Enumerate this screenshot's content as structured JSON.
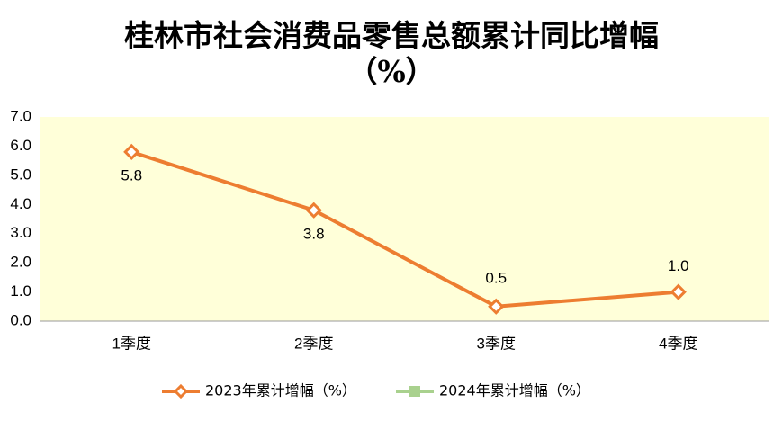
{
  "chart_data": {
    "type": "line",
    "title": "桂林市社会消费品零售总额累计同比增幅",
    "subtitle": "（%）",
    "categories": [
      "1季度",
      "2季度",
      "3季度",
      "4季度"
    ],
    "series": [
      {
        "name": "2023年累计增幅（%）",
        "color": "#ed7d31",
        "values": [
          5.8,
          3.8,
          0.5,
          1.0
        ],
        "value_labels": [
          "5.8",
          "3.8",
          "0.5",
          "1.0"
        ]
      },
      {
        "name": "2024年累计增幅（%）",
        "color": "#a9d18e",
        "values": [
          null,
          null,
          null,
          null
        ]
      }
    ],
    "ylim": [
      0,
      7
    ],
    "yticks": [
      {
        "value": 0,
        "label": "0.0"
      },
      {
        "value": 1,
        "label": "1.0"
      },
      {
        "value": 2,
        "label": "2.0"
      },
      {
        "value": 3,
        "label": "3.0"
      },
      {
        "value": 4,
        "label": "4.0"
      },
      {
        "value": 5,
        "label": "5.0"
      },
      {
        "value": 6,
        "label": "6.0"
      },
      {
        "value": 7,
        "label": "7.0"
      }
    ],
    "plot_background": "#ffffd9",
    "legend": "bottom"
  }
}
